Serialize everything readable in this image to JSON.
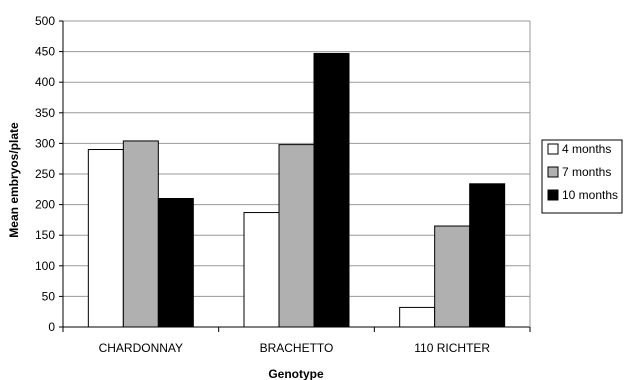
{
  "chart_data": {
    "type": "bar",
    "title": "",
    "xlabel": "Genotype",
    "ylabel": "Mean embryos/plate",
    "categories": [
      "CHARDONNAY",
      "BRACHETTO",
      "110 RICHTER"
    ],
    "series": [
      {
        "name": "4 months",
        "color": "#ffffff",
        "values": [
          290,
          187,
          32
        ]
      },
      {
        "name": "7 months",
        "color": "#b0b0b0",
        "values": [
          304,
          298,
          165
        ]
      },
      {
        "name": "10 months",
        "color": "#000000",
        "values": [
          210,
          447,
          234
        ]
      }
    ],
    "ylim": [
      0,
      500
    ],
    "yticks": [
      0,
      50,
      100,
      150,
      200,
      250,
      300,
      350,
      400,
      450,
      500
    ],
    "grid": true,
    "legend_position": "right"
  }
}
